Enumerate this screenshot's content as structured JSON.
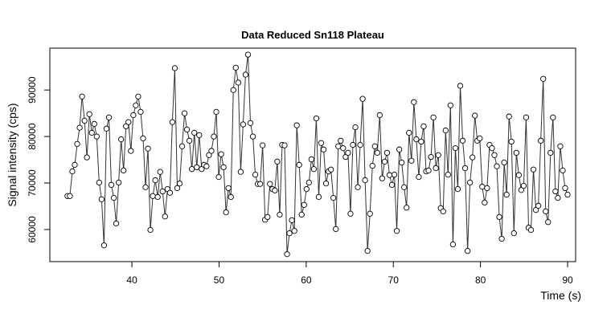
{
  "chart_data": {
    "type": "line",
    "title": "Data Reduced Sn118 Plateau",
    "x_label": "Time (s)",
    "y_label": "Signal intensity (cps)",
    "x": [
      32.6,
      32.88,
      33.16,
      33.44,
      33.72,
      34,
      34.28,
      34.56,
      34.84,
      35.12,
      35.4,
      35.68,
      35.96,
      36.24,
      36.52,
      36.8,
      37.08,
      37.36,
      37.64,
      37.92,
      38.2,
      38.48,
      38.76,
      39.04,
      39.32,
      39.6,
      39.88,
      40.16,
      40.44,
      40.72,
      41,
      41.28,
      41.56,
      41.84,
      42.12,
      42.4,
      42.68,
      42.96,
      43.24,
      43.52,
      43.8,
      44.08,
      44.36,
      44.64,
      44.92,
      45.2,
      45.48,
      45.76,
      46.04,
      46.32,
      46.6,
      46.88,
      47.16,
      47.44,
      47.72,
      48,
      48.28,
      48.56,
      48.84,
      49.12,
      49.4,
      49.68,
      49.96,
      50.24,
      50.52,
      50.8,
      51.08,
      51.36,
      51.64,
      51.92,
      52.2,
      52.48,
      52.76,
      53.04,
      53.32,
      53.6,
      53.88,
      54.16,
      54.44,
      54.72,
      55,
      55.28,
      55.56,
      55.84,
      56.12,
      56.4,
      56.68,
      56.96,
      57.24,
      57.52,
      57.8,
      58.08,
      58.36,
      58.64,
      58.92,
      59.2,
      59.48,
      59.76,
      60.04,
      60.32,
      60.6,
      60.88,
      61.16,
      61.44,
      61.72,
      62,
      62.28,
      62.56,
      62.84,
      63.12,
      63.4,
      63.68,
      63.96,
      64.24,
      64.52,
      64.8,
      65.08,
      65.36,
      65.64,
      65.92,
      66.2,
      66.48,
      66.76,
      67.04,
      67.32,
      67.6,
      67.88,
      68.16,
      68.44,
      68.72,
      69,
      69.28,
      69.56,
      69.84,
      70.12,
      70.4,
      70.68,
      70.96,
      71.24,
      71.52,
      71.8,
      72.08,
      72.36,
      72.64,
      72.92,
      73.2,
      73.48,
      73.76,
      74.04,
      74.32,
      74.6,
      74.88,
      75.16,
      75.44,
      75.72,
      76,
      76.28,
      76.56,
      76.84,
      77.12,
      77.4,
      77.68,
      77.96,
      78.24,
      78.52,
      78.8,
      79.08,
      79.36,
      79.64,
      79.92,
      80.2,
      80.48,
      80.76,
      81.04,
      81.32,
      81.6,
      81.88,
      82.16,
      82.44,
      82.72,
      83,
      83.28,
      83.56,
      83.84,
      84.12,
      84.4,
      84.68,
      84.96,
      85.24,
      85.52,
      85.8,
      86.08,
      86.36,
      86.64,
      86.92,
      87.2,
      87.48,
      87.76,
      88.04,
      88.32,
      88.6,
      88.88,
      89.16,
      89.44,
      89.72,
      90
    ],
    "values": [
      67200,
      67200,
      72500,
      73900,
      78400,
      81900,
      88600,
      83400,
      75500,
      84800,
      80800,
      82700,
      80000,
      70100,
      66500,
      56600,
      81700,
      84100,
      69600,
      66800,
      61300,
      70100,
      79400,
      72700,
      82200,
      83100,
      76900,
      84600,
      86700,
      88600,
      85300,
      79600,
      69100,
      77400,
      59900,
      67200,
      70600,
      67000,
      72400,
      68200,
      62800,
      68700,
      67900,
      83100,
      94700,
      68900,
      69900,
      77900,
      85000,
      81500,
      79100,
      73000,
      80800,
      73400,
      80300,
      73000,
      73900,
      73600,
      76000,
      76900,
      80000,
      85300,
      71300,
      76200,
      73400,
      63700,
      68900,
      67000,
      90000,
      94800,
      91600,
      72400,
      82600,
      93300,
      97600,
      82900,
      80000,
      71800,
      69800,
      69800,
      78100,
      62100,
      62700,
      69800,
      68700,
      68400,
      74600,
      63200,
      78200,
      78100,
      54700,
      59200,
      62000,
      59700,
      82400,
      73900,
      63200,
      65300,
      68700,
      70100,
      75100,
      73000,
      83900,
      67000,
      78600,
      77200,
      69900,
      72500,
      72900,
      66800,
      60100,
      77900,
      79100,
      77500,
      75600,
      76500,
      63400,
      78200,
      82000,
      69100,
      78200,
      88100,
      70600,
      55400,
      63400,
      73700,
      77900,
      76500,
      84600,
      71000,
      74600,
      76500,
      71700,
      69600,
      71800,
      59700,
      77200,
      74400,
      69100,
      64700,
      80800,
      74800,
      87400,
      79400,
      71300,
      78900,
      82200,
      72500,
      72700,
      75600,
      84100,
      73200,
      76000,
      64600,
      63900,
      81300,
      71800,
      86700,
      56800,
      77500,
      68700,
      90900,
      79100,
      73200,
      55400,
      70100,
      75500,
      84500,
      79100,
      79600,
      69200,
      65800,
      68900,
      78200,
      77500,
      76000,
      73600,
      62700,
      58000,
      74400,
      67500,
      84300,
      78900,
      59200,
      76500,
      71700,
      68500,
      69400,
      84100,
      60400,
      59900,
      72900,
      64200,
      65100,
      79100,
      92400,
      63900,
      61600,
      76500,
      84100,
      68200,
      66800,
      77900,
      72700,
      68900,
      67500
    ],
    "color": "#333333",
    "xlim": [
      30.58,
      90.92
    ],
    "ylim": [
      53100,
      99000
    ],
    "xticks": [
      40,
      50,
      60,
      70,
      80,
      90
    ],
    "yticks": [
      60000,
      70000,
      80000,
      90000
    ]
  }
}
